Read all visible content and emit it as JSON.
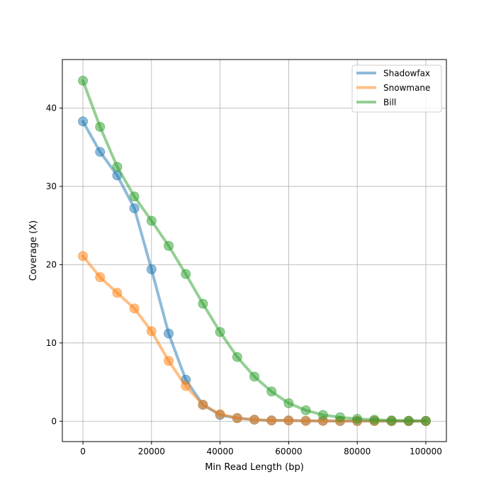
{
  "chart_data": {
    "type": "line",
    "title": "",
    "xlabel": "Min Read Length (bp)",
    "ylabel": "Coverage (X)",
    "xlim": [
      -6000,
      106000
    ],
    "ylim": [
      -2.6,
      46.2
    ],
    "xticks": [
      0,
      20000,
      40000,
      60000,
      80000,
      100000
    ],
    "xtick_labels": [
      "0",
      "20000",
      "40000",
      "60000",
      "80000",
      "100000"
    ],
    "yticks": [
      0,
      10,
      20,
      30,
      40
    ],
    "ytick_labels": [
      "0",
      "10",
      "20",
      "30",
      "40"
    ],
    "grid": true,
    "legend_position": "top-right",
    "x": [
      0,
      5000,
      10000,
      15000,
      20000,
      25000,
      30000,
      35000,
      40000,
      45000,
      50000,
      55000,
      60000,
      65000,
      70000,
      75000,
      80000,
      85000,
      90000,
      95000,
      100000
    ],
    "series": [
      {
        "name": "Shadowfax",
        "color": "#1f77b4",
        "values": [
          38.3,
          34.4,
          31.4,
          27.2,
          19.4,
          11.2,
          5.3,
          2.1,
          0.8,
          0.4,
          0.2,
          0.1,
          0.1,
          0.05,
          0.05,
          0.03,
          0.02,
          0.02,
          0.01,
          0.01,
          0.01
        ]
      },
      {
        "name": "Snowmane",
        "color": "#ff7f0e",
        "values": [
          21.1,
          18.4,
          16.4,
          14.4,
          11.5,
          7.7,
          4.5,
          2.1,
          0.9,
          0.4,
          0.2,
          0.1,
          0.1,
          0.05,
          0.05,
          0.03,
          0.02,
          0.02,
          0.01,
          0.01,
          0.01
        ]
      },
      {
        "name": "Bill",
        "color": "#2ca02c",
        "values": [
          43.5,
          37.6,
          32.5,
          28.7,
          25.6,
          22.4,
          18.8,
          15.0,
          11.4,
          8.2,
          5.7,
          3.8,
          2.3,
          1.4,
          0.8,
          0.5,
          0.3,
          0.2,
          0.1,
          0.07,
          0.05
        ]
      }
    ]
  }
}
